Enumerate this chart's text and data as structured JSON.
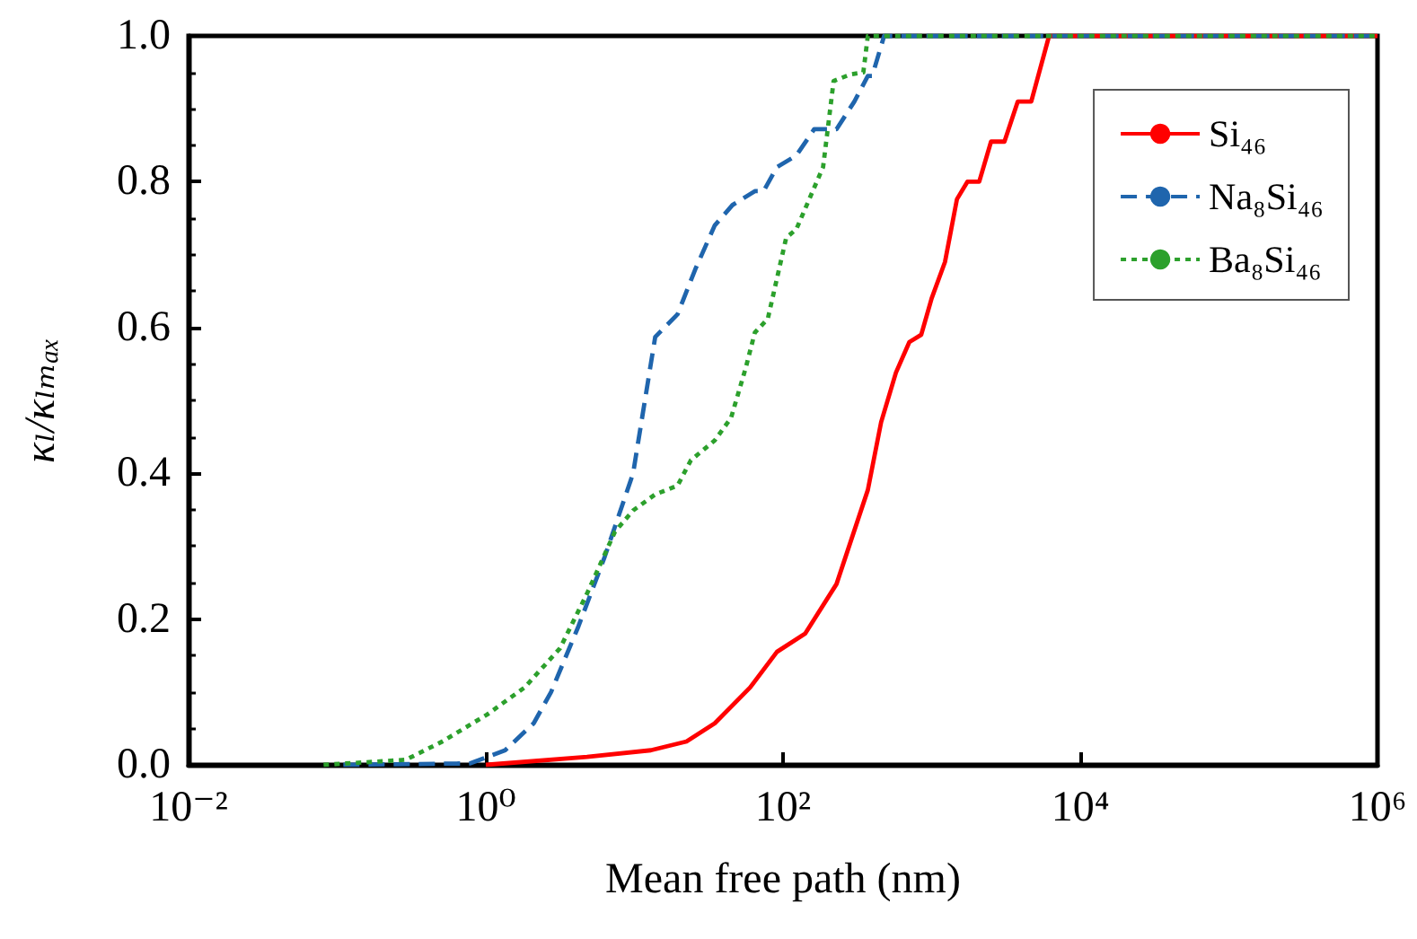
{
  "chart_data": {
    "type": "line",
    "xlabel": "Mean free path (nm)",
    "ylabel": "κₗ/κₗₘₐₓ",
    "log": "x",
    "grid": false,
    "legend": "top right",
    "marker": "none",
    "xlim": [
      0.01,
      1000000
    ],
    "xticks": [
      {
        "value": 0.01,
        "label": "10⁻²"
      },
      {
        "value": 1,
        "label": "10⁰"
      },
      {
        "value": 100,
        "label": "10²"
      },
      {
        "value": 10000,
        "label": "10⁴"
      },
      {
        "value": 1000000,
        "label": "10⁶"
      }
    ],
    "ylim": [
      0,
      1
    ],
    "yticks": [
      {
        "value": 0,
        "label": "0.0"
      },
      {
        "value": 0.2,
        "label": "0.2"
      },
      {
        "value": 0.4,
        "label": "0.4"
      },
      {
        "value": 0.6,
        "label": "0.6"
      },
      {
        "value": 0.8,
        "label": "0.8"
      },
      {
        "value": 1,
        "label": "1.0"
      }
    ],
    "series": [
      {
        "name": "Si₄₆",
        "color": "#ff0000",
        "line_style": "solid",
        "x": [
          1,
          4.8,
          12.9,
          22.4,
          34.7,
          60,
          91,
          141,
          229,
          372,
          457,
          575,
          708,
          851,
          1000,
          1230,
          1480,
          1740,
          2090,
          2510,
          3090,
          3800,
          4680,
          6170,
          1000000
        ],
        "values": [
          0,
          0.011,
          0.02,
          0.032,
          0.057,
          0.106,
          0.155,
          0.18,
          0.248,
          0.377,
          0.47,
          0.538,
          0.58,
          0.59,
          0.64,
          0.69,
          0.776,
          0.8,
          0.8,
          0.855,
          0.855,
          0.91,
          0.91,
          1,
          1
        ]
      },
      {
        "name": "Na₈Si₄₆",
        "color": "#1f65ad",
        "line_style": "dashed",
        "x": [
          0.11,
          0.78,
          1.35,
          2.1,
          2.75,
          4.2,
          6.3,
          9.8,
          13.8,
          19.5,
          25.7,
          34.7,
          45.7,
          64.6,
          74,
          91,
          123,
          162,
          200,
          229,
          302,
          372,
          398,
          479,
          1000000
        ],
        "values": [
          0,
          0.002,
          0.02,
          0.057,
          0.1,
          0.19,
          0.285,
          0.4,
          0.587,
          0.618,
          0.68,
          0.74,
          0.768,
          0.787,
          0.787,
          0.82,
          0.836,
          0.872,
          0.872,
          0.872,
          0.91,
          0.945,
          0.945,
          1,
          1
        ]
      },
      {
        "name": "Ba₈Si₄₆",
        "color": "#2ca02c",
        "line_style": "dotted",
        "x": [
          0.081,
          0.29,
          0.51,
          1.02,
          1.82,
          3.16,
          4.8,
          7.4,
          9.8,
          13.8,
          19.5,
          24,
          34.7,
          44.7,
          56,
          64.6,
          79,
          105,
          123,
          186,
          219,
          282,
          347,
          372,
          1000000
        ],
        "values": [
          0,
          0.007,
          0.032,
          0.069,
          0.106,
          0.16,
          0.235,
          0.32,
          0.349,
          0.371,
          0.383,
          0.418,
          0.445,
          0.476,
          0.544,
          0.593,
          0.612,
          0.723,
          0.735,
          0.82,
          0.938,
          0.947,
          0.95,
          1,
          1
        ]
      }
    ]
  }
}
